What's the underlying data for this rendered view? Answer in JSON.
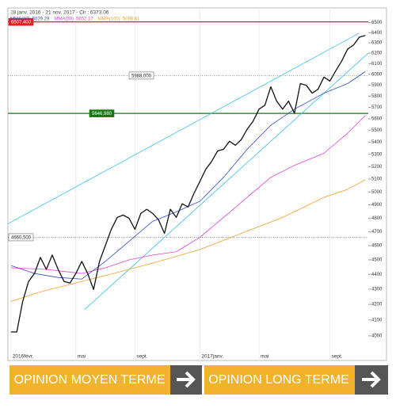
{
  "chart_data": {
    "type": "line",
    "title": "28 janv. 2016 - 21 nov. 2017 - Clr : 6373.06",
    "log_scale": true,
    "ylim": [
      3850,
      6650
    ],
    "yticks": [
      4000,
      4100,
      4200,
      4300,
      4400,
      4500,
      4600,
      4700,
      4800,
      4900,
      5000,
      5100,
      5200,
      5300,
      5400,
      5500,
      5600,
      5700,
      5800,
      5900,
      6000,
      6100,
      6200,
      6300,
      6400,
      6500
    ],
    "xlim": [
      -0.5,
      60.5
    ],
    "xticks": [
      {
        "value": 0,
        "label": "2016févr."
      },
      {
        "value": 11,
        "label": "mai"
      },
      {
        "value": 21,
        "label": "sept."
      },
      {
        "value": 32,
        "label": "2017janv."
      },
      {
        "value": 42,
        "label": "mai"
      },
      {
        "value": 54,
        "label": "sept."
      }
    ],
    "series": [
      {
        "color": "#111111",
        "values": [
          4024,
          4024,
          4219,
          4352,
          4406,
          4517,
          4434,
          4534,
          4434,
          4352,
          4341,
          4406,
          4489,
          4406,
          4298,
          4489,
          4602,
          4718,
          4806,
          4824,
          4800,
          4718,
          4836,
          4867,
          4836,
          4788,
          4688,
          4867,
          4806,
          4909,
          4885,
          4989,
          5082,
          5179,
          5243,
          5328,
          5342,
          5408,
          5375,
          5422,
          5510,
          5579,
          5684,
          5719,
          5885,
          5755,
          5684,
          5755,
          5649,
          5914,
          5899,
          5827,
          5863,
          5974,
          5937,
          6033,
          6124,
          6239,
          6278,
          6356,
          6372
        ]
      },
      {
        "name": "MMA(20)",
        "legend_value": 6029.29,
        "color": "#3050c8",
        "x": [
          0,
          4,
          8,
          12,
          16,
          20,
          24,
          28,
          32,
          36,
          40,
          44,
          48,
          53,
          57,
          60
        ],
        "values": [
          4461,
          4406,
          4379,
          4368,
          4489,
          4631,
          4777,
          4848,
          4928,
          5114,
          5342,
          5544,
          5684,
          5827,
          5914,
          6025
        ]
      },
      {
        "name": "MMA(50)",
        "legend_value": 5652.17,
        "color": "#e040d8",
        "x": [
          0,
          6,
          12,
          16,
          20,
          24,
          28,
          32,
          36,
          40,
          44,
          48,
          53,
          57,
          60
        ],
        "values": [
          4445,
          4434,
          4406,
          4445,
          4500,
          4534,
          4557,
          4660,
          4806,
          4958,
          5114,
          5210,
          5309,
          5476,
          5628
        ]
      },
      {
        "name": "MMA(100)",
        "legend_value": 5098.61,
        "color": "#f0a030",
        "x": [
          0,
          5,
          12,
          19,
          25,
          32,
          39,
          46,
          53,
          57,
          60
        ],
        "values": [
          4219,
          4282,
          4352,
          4423,
          4489,
          4573,
          4688,
          4806,
          4958,
          5020,
          5095
        ]
      }
    ],
    "trendlines": [
      {
        "color": "#38c0ea",
        "x": [
          -0.5,
          59
        ],
        "values": [
          4759,
          6396
        ]
      },
      {
        "color": "#38c0ea",
        "x": [
          12.5,
          60.5
        ],
        "values": [
          4167,
          6200
        ]
      }
    ],
    "hlines": [
      {
        "value": 6507.4,
        "label": "6507,400",
        "color": "#e02020",
        "style": "solid"
      },
      {
        "value": 5988,
        "label": "5988,000",
        "color": "#888888",
        "style": "dotted"
      },
      {
        "value": 5646.98,
        "label": "5646,980",
        "color": "#107a10",
        "style": "solid"
      },
      {
        "value": 4660.5,
        "label": "4660,500",
        "color": "#888888",
        "style": "dotted"
      }
    ]
  },
  "buttons": [
    "OPINION MOYEN TERME",
    "OPINION LONG TERME"
  ]
}
